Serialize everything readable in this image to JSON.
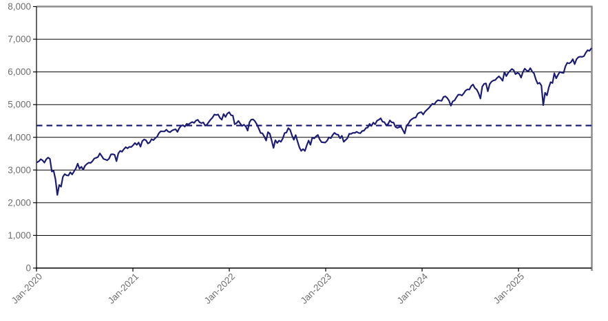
{
  "chart_data": {
    "type": "line",
    "title": "",
    "legend": "none",
    "grid": "horizontal",
    "ylim": [
      0,
      8000
    ],
    "y_axis": {
      "values": [
        0,
        1000,
        2000,
        3000,
        4000,
        5000,
        6000,
        7000,
        8000
      ],
      "labels": [
        "0",
        "1,000",
        "2,000",
        "3,000",
        "4,000",
        "5,000",
        "6,000",
        "7,000",
        "8,000"
      ]
    },
    "x_axis": {
      "labels": [
        "Jan-2020",
        "Jan-2021",
        "Jan-2022",
        "Jan-2023",
        "Jan-2024",
        "Jan-2025"
      ],
      "tick_years": [
        2020,
        2021,
        2022,
        2023,
        2024,
        2025
      ],
      "span_years": [
        2020.0,
        2025.757
      ]
    },
    "reference_line": {
      "name": "average-level-dashed-line",
      "value": 4360,
      "style": "dashed",
      "color": "#1c1c75"
    },
    "series": [
      {
        "name": "index-level",
        "color": "#1c1c75",
        "frequency": "weekly",
        "start_year_fraction": 2020.0055,
        "step_years": 0.01916509,
        "values": [
          3235,
          3265,
          3330,
          3295,
          3225,
          3328,
          3380,
          3338,
          2954,
          2972,
          2711,
          2237,
          2541,
          2489,
          2790,
          2875,
          2837,
          2831,
          2930,
          2864,
          2955,
          3044,
          3194,
          3041,
          3098,
          3009,
          3130,
          3185,
          3225,
          3216,
          3271,
          3351,
          3373,
          3397,
          3508,
          3427,
          3341,
          3319,
          3298,
          3348,
          3477,
          3484,
          3465,
          3270,
          3509,
          3585,
          3558,
          3638,
          3699,
          3663,
          3709,
          3703,
          3756,
          3825,
          3768,
          3841,
          3714,
          3887,
          3935,
          3907,
          3811,
          3842,
          3943,
          3913,
          3975,
          4020,
          4129,
          4185,
          4180,
          4181,
          4233,
          4174,
          4156,
          4204,
          4230,
          4247,
          4166,
          4281,
          4352,
          4370,
          4327,
          4412,
          4395,
          4437,
          4468,
          4442,
          4509,
          4535,
          4459,
          4433,
          4455,
          4357,
          4391,
          4471,
          4545,
          4605,
          4698,
          4683,
          4698,
          4595,
          4538,
          4712,
          4621,
          4726,
          4766,
          4677,
          4663,
          4398,
          4432,
          4501,
          4419,
          4349,
          4385,
          4329,
          4204,
          4463,
          4543,
          4546,
          4488,
          4393,
          4272,
          4132,
          4123,
          4024,
          3901,
          4158,
          4109,
          3901,
          3675,
          3912,
          3825,
          3899,
          3863,
          3962,
          4130,
          4145,
          4280,
          4228,
          4058,
          3924,
          4067,
          3873,
          3693,
          3586,
          3640,
          3583,
          3753,
          3901,
          3771,
          3993,
          3965,
          4026,
          4072,
          3934,
          3852,
          3845,
          3840,
          3895,
          3999,
          3973,
          4071,
          4136,
          4090,
          4079,
          3970,
          4046,
          3862,
          3917,
          3971,
          4109,
          4105,
          4138,
          4134,
          4169,
          4136,
          4124,
          4192,
          4205,
          4282,
          4299,
          4410,
          4348,
          4450,
          4399,
          4505,
          4536,
          4582,
          4478,
          4464,
          4370,
          4406,
          4516,
          4457,
          4450,
          4320,
          4288,
          4309,
          4328,
          4224,
          4117,
          4358,
          4415,
          4514,
          4559,
          4595,
          4604,
          4719,
          4755,
          4770,
          4697,
          4784,
          4840,
          4891,
          4959,
          5027,
          5006,
          5089,
          5137,
          5124,
          5117,
          5234,
          5254,
          5204,
          5123,
          4967,
          5100,
          5128,
          5223,
          5303,
          5305,
          5278,
          5347,
          5432,
          5465,
          5460,
          5567,
          5615,
          5505,
          5459,
          5347,
          5186,
          5554,
          5635,
          5648,
          5408,
          5626,
          5703,
          5738,
          5751,
          5815,
          5865,
          5808,
          5729,
          5996,
          5871,
          5969,
          6032,
          6090,
          6051,
          5931,
          5971,
          5942,
          5827,
          5997,
          6101,
          6041,
          6026,
          6115,
          6013,
          5955,
          5770,
          5639,
          5668,
          5581,
          4983,
          5363,
          5283,
          5525,
          5687,
          5660,
          5958,
          5803,
          5912,
          6000,
          5977,
          5968,
          6173,
          6279,
          6260,
          6297,
          6389,
          6238,
          6389,
          6450,
          6467,
          6460,
          6481,
          6584,
          6664,
          6644,
          6716
        ]
      }
    ],
    "colors": {
      "series": "#1c1c75",
      "gridline": "#000000",
      "axis_line": "#000000",
      "plot_border": "#8c8c8c",
      "tick_label": "#6e6e6e",
      "background": "#ffffff"
    }
  }
}
